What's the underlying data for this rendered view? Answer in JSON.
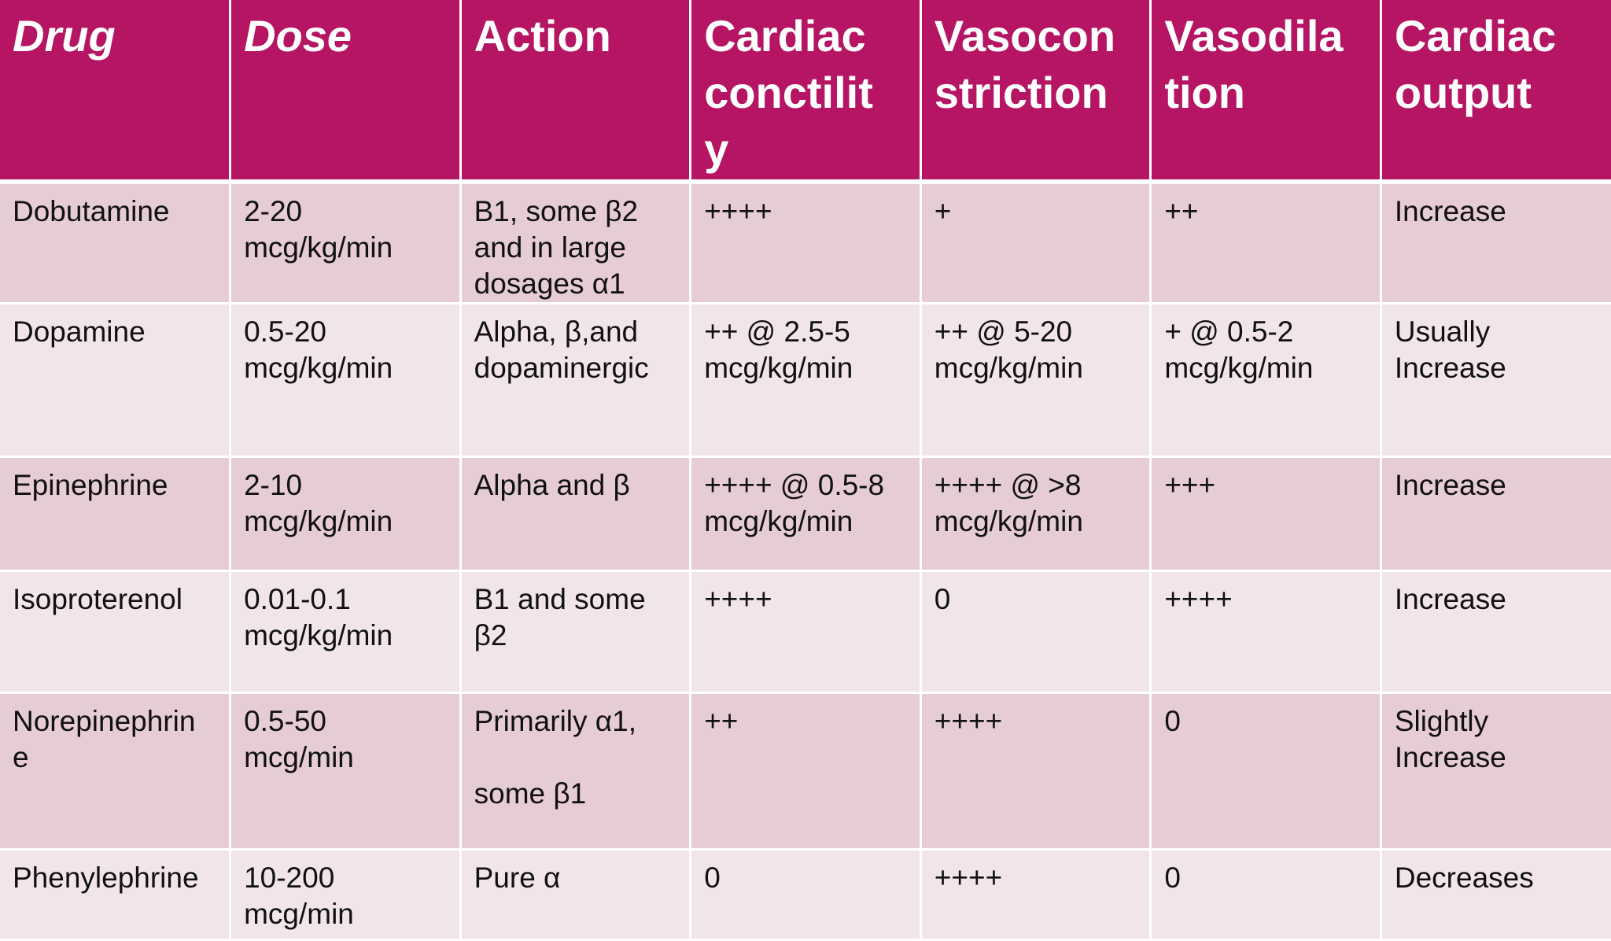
{
  "table": {
    "headers": [
      "Drug",
      "Dose",
      "Action",
      "Cardiac\nconctilit\ny",
      "Vasocon\nstriction",
      "Vasodila\ntion",
      "Cardiac\noutput"
    ],
    "rows": [
      [
        "Dobutamine",
        "2-20\nmcg/kg/min",
        "B1, some β2\nand in large\ndosages α1",
        "++++",
        "+",
        "++",
        "Increase"
      ],
      [
        "Dopamine",
        "0.5-20\nmcg/kg/min",
        "Alpha, β,and\ndopaminergic",
        "++ @ 2.5-5\nmcg/kg/min",
        "++ @ 5-20\nmcg/kg/min",
        "+ @ 0.5-2\nmcg/kg/min",
        "Usually\nIncrease"
      ],
      [
        "Epinephrine",
        "2-10\nmcg/kg/min",
        "Alpha and β",
        "++++ @ 0.5-8\nmcg/kg/min",
        "++++ @ >8\nmcg/kg/min",
        "+++",
        "Increase"
      ],
      [
        "Isoproterenol",
        "0.01-0.1\nmcg/kg/min",
        "B1 and some\nβ2",
        "++++",
        "0",
        "++++",
        "Increase"
      ],
      [
        "Norepinephrin\ne",
        "0.5-50\nmcg/min",
        "Primarily α1,\n\nsome β1",
        "++",
        "++++",
        "0",
        "Slightly\nIncrease"
      ],
      [
        "Phenylephrine",
        "10-200\nmcg/min",
        "Pure α",
        "0",
        "++++",
        "0",
        "Decreases"
      ]
    ]
  }
}
